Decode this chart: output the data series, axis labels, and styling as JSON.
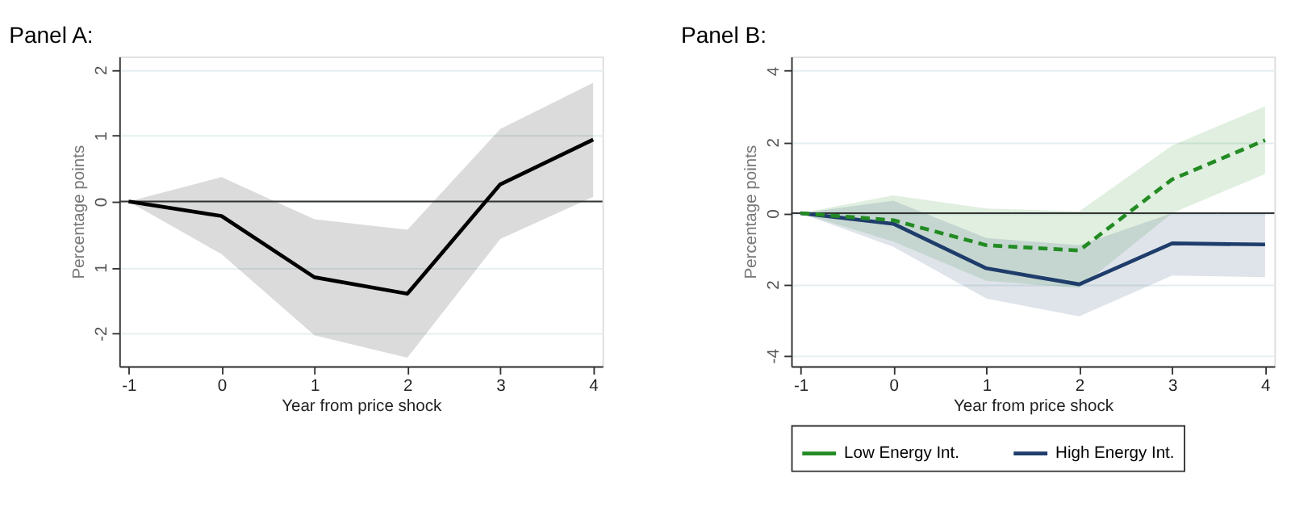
{
  "chart_data": [
    {
      "type": "line",
      "title": "Panel A:",
      "xlabel": "Year from price shock",
      "ylabel": "Percentage points",
      "x": [
        -1,
        0,
        1,
        2,
        3,
        4
      ],
      "series": [
        {
          "color": "#000000",
          "values": [
            0,
            -0.22,
            -1.15,
            -1.4,
            0.26,
            0.94
          ],
          "lower": [
            0,
            -0.8,
            -2.03,
            -2.37,
            -0.57,
            0.07
          ],
          "upper": [
            0,
            0.37,
            -0.27,
            -0.43,
            1.1,
            1.8
          ],
          "line_style": "solid"
        }
      ],
      "xlim": [
        -1.1,
        4.1
      ],
      "xticks": [
        -1,
        0,
        1,
        2,
        3,
        4
      ],
      "ylim": [
        -2.5,
        2.2
      ],
      "yticks": [
        {
          "value": -2,
          "label": "-2"
        },
        {
          "value": -1,
          "label": "1"
        },
        0,
        1,
        2
      ],
      "ref_lines": [
        {
          "axis": "y",
          "value": 0,
          "color": "#333333"
        }
      ],
      "grid": "y",
      "legend": false,
      "marker": "none"
    },
    {
      "type": "line",
      "title": "Panel B:",
      "xlabel": "Year from price shock",
      "ylabel": "Percentage points",
      "x": [
        -1,
        0,
        1,
        2,
        3,
        4
      ],
      "series": [
        {
          "name": "Low Energy Int.",
          "color": "#238b23",
          "values": [
            0,
            -0.2,
            -0.9,
            -1.05,
            0.95,
            2.05
          ],
          "lower": [
            0,
            -0.8,
            -1.9,
            -2.1,
            0.0,
            1.1
          ],
          "upper": [
            0,
            0.5,
            0.13,
            0.05,
            1.9,
            3.0
          ],
          "line_style": "dashed"
        },
        {
          "name": "High Energy Int.",
          "color": "#1f3d6b",
          "values": [
            0,
            -0.3,
            -1.55,
            -2.0,
            -0.85,
            -0.88
          ],
          "lower": [
            0,
            -0.95,
            -2.4,
            -2.9,
            -1.75,
            -1.8
          ],
          "upper": [
            0,
            0.35,
            -0.7,
            -0.9,
            0.0,
            0.0
          ],
          "line_style": "solid"
        }
      ],
      "xlim": [
        -1.1,
        4.1
      ],
      "xticks": [
        -1,
        0,
        1,
        2,
        3,
        4
      ],
      "ylim": [
        -4.3,
        4.4
      ],
      "yticks": [
        {
          "value": -4,
          "label": "-4"
        },
        {
          "value": -2,
          "label": "2"
        },
        0,
        2,
        4
      ],
      "ref_lines": [
        {
          "axis": "y",
          "value": 0,
          "color": "#333333"
        }
      ],
      "grid": "y",
      "legend": "bottom",
      "marker": "none"
    }
  ]
}
